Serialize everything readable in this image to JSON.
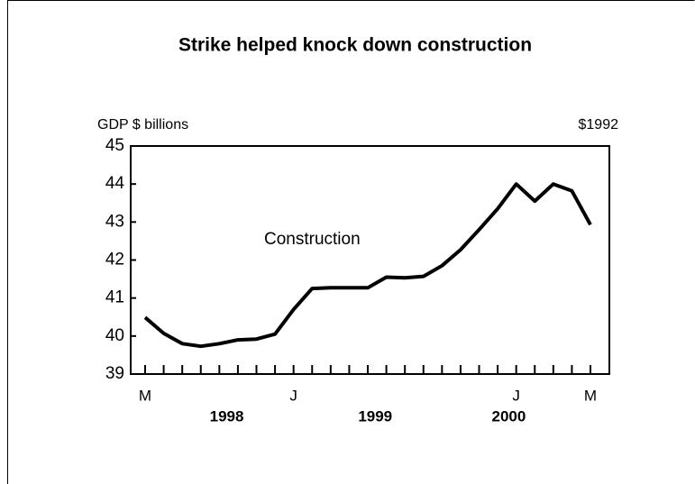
{
  "chart_data": {
    "type": "line",
    "title": "Strike helped knock down construction",
    "y_label": "GDP $ billions",
    "y_unit_note": "$1992",
    "annotation": "Construction",
    "categories": [
      "M",
      null,
      null,
      null,
      null,
      null,
      null,
      null,
      "J",
      null,
      null,
      null,
      null,
      null,
      null,
      null,
      null,
      null,
      null,
      null,
      "J",
      null,
      null,
      null,
      "M"
    ],
    "year_labels": [
      "1998",
      "1999",
      "2000"
    ],
    "series": [
      {
        "name": "Construction",
        "color": "#000000",
        "values": [
          40.49,
          40.07,
          39.8,
          39.73,
          39.8,
          39.9,
          39.92,
          40.05,
          40.7,
          41.25,
          41.27,
          41.27,
          41.27,
          41.55,
          41.53,
          41.57,
          41.85,
          42.27,
          42.8,
          43.35,
          44.0,
          43.55,
          44.0,
          43.82,
          42.93
        ]
      }
    ],
    "ylim": [
      39,
      45
    ],
    "yticks": [
      39,
      40,
      41,
      42,
      43,
      44,
      45
    ],
    "grid": false
  }
}
